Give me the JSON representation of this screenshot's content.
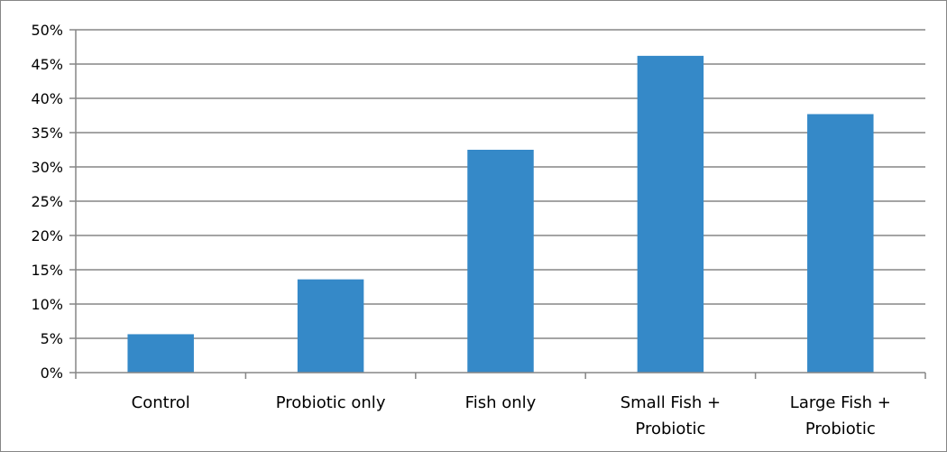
{
  "chart_data": {
    "type": "bar",
    "categories": [
      [
        "Control"
      ],
      [
        "Probiotic only"
      ],
      [
        "Fish only"
      ],
      [
        "Small Fish +",
        "Probiotic"
      ],
      [
        "Large Fish +",
        "Probiotic"
      ]
    ],
    "values": [
      5.6,
      13.6,
      32.5,
      46.2,
      37.7
    ],
    "y_ticks": [
      "0%",
      "5%",
      "10%",
      "15%",
      "20%",
      "25%",
      "30%",
      "35%",
      "40%",
      "45%",
      "50%"
    ],
    "ylim": [
      0,
      50
    ],
    "grid": true,
    "legend": "none",
    "bar_color": "#3589C8",
    "grid_color": "#868686",
    "axis_color": "#868686"
  }
}
